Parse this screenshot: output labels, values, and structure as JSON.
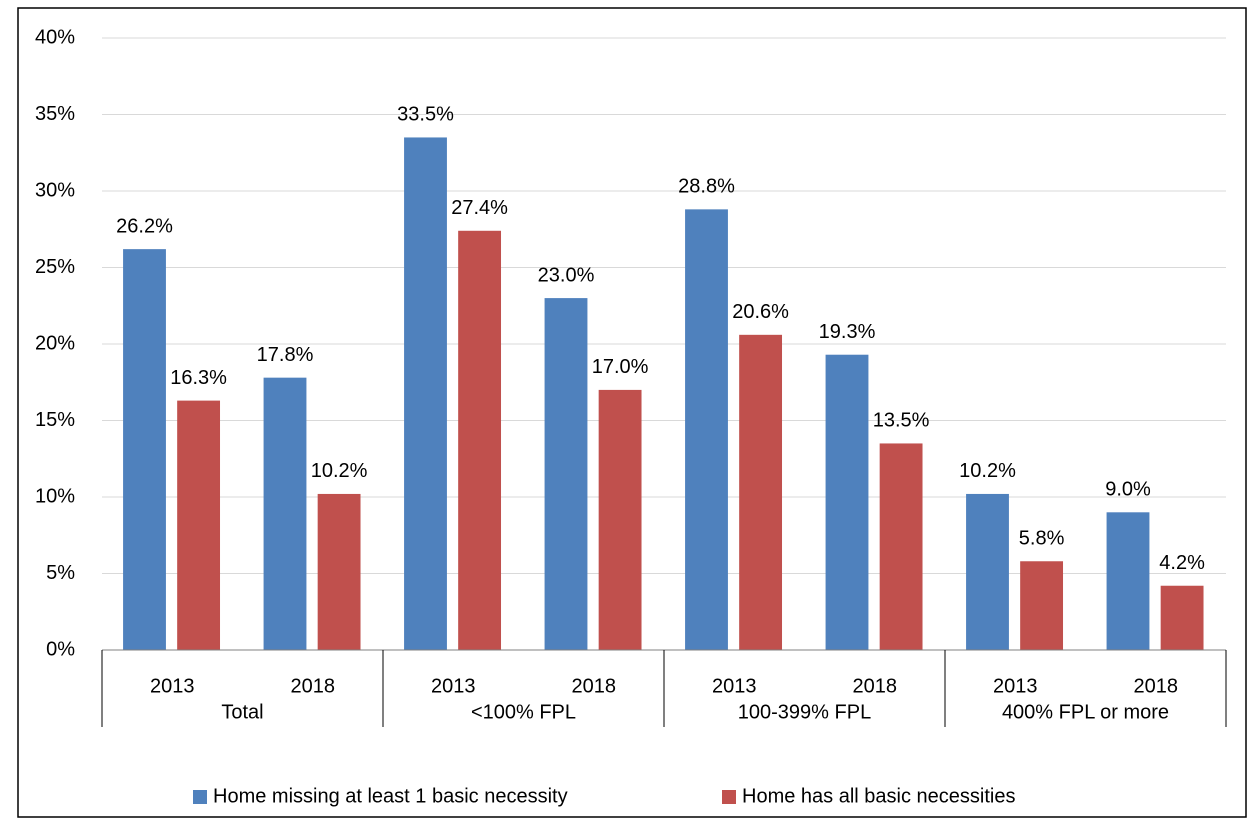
{
  "chart_data": {
    "type": "bar",
    "categories": [
      "2013",
      "2018",
      "2013",
      "2018",
      "2013",
      "2018",
      "2013",
      "2018"
    ],
    "groups": [
      "Total",
      "<100% FPL",
      "100-399% FPL",
      "400% FPL or more"
    ],
    "series": [
      {
        "name": "Home missing at least 1 basic necessity",
        "color": "#4f81bd",
        "values": [
          26.2,
          17.8,
          33.5,
          23.0,
          28.8,
          19.3,
          10.2,
          9.0
        ],
        "value_labels": [
          "26.2%",
          "17.8%",
          "33.5%",
          "23.0%",
          "28.8%",
          "19.3%",
          "10.2%",
          "9.0%"
        ]
      },
      {
        "name": "Home has all basic necessities",
        "color": "#c0504d",
        "values": [
          16.3,
          10.2,
          27.4,
          17.0,
          20.6,
          13.5,
          5.8,
          4.2
        ],
        "value_labels": [
          "16.3%",
          "10.2%",
          "27.4%",
          "17.0%",
          "20.6%",
          "13.5%",
          "5.8%",
          "4.2%"
        ]
      }
    ],
    "ylim": [
      0,
      40
    ],
    "yticks": [
      {
        "value": 0,
        "label": "0%"
      },
      {
        "value": 5,
        "label": "5%"
      },
      {
        "value": 10,
        "label": "10%"
      },
      {
        "value": 15,
        "label": "15%"
      },
      {
        "value": 20,
        "label": "20%"
      },
      {
        "value": 25,
        "label": "25%"
      },
      {
        "value": 30,
        "label": "30%"
      },
      {
        "value": 35,
        "label": "35%"
      },
      {
        "value": 40,
        "label": "40%"
      }
    ],
    "grid": true,
    "legend": "bottom"
  }
}
